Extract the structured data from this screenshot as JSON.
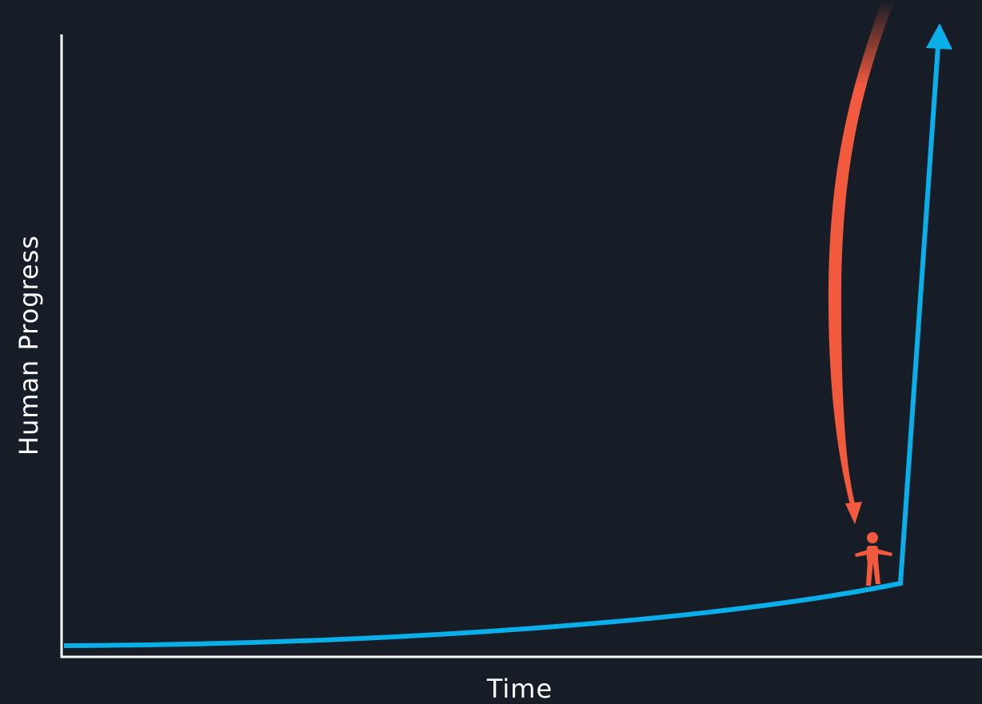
{
  "chart_data": {
    "type": "line",
    "xlabel": "Time",
    "ylabel": "Human Progress"
  },
  "colors": {
    "background": "#171d26",
    "axis": "#ffffff",
    "progress_curve": "#0aaee8",
    "arrow_and_figure": "#f25a3e"
  },
  "icons": {
    "person": "person-icon"
  }
}
